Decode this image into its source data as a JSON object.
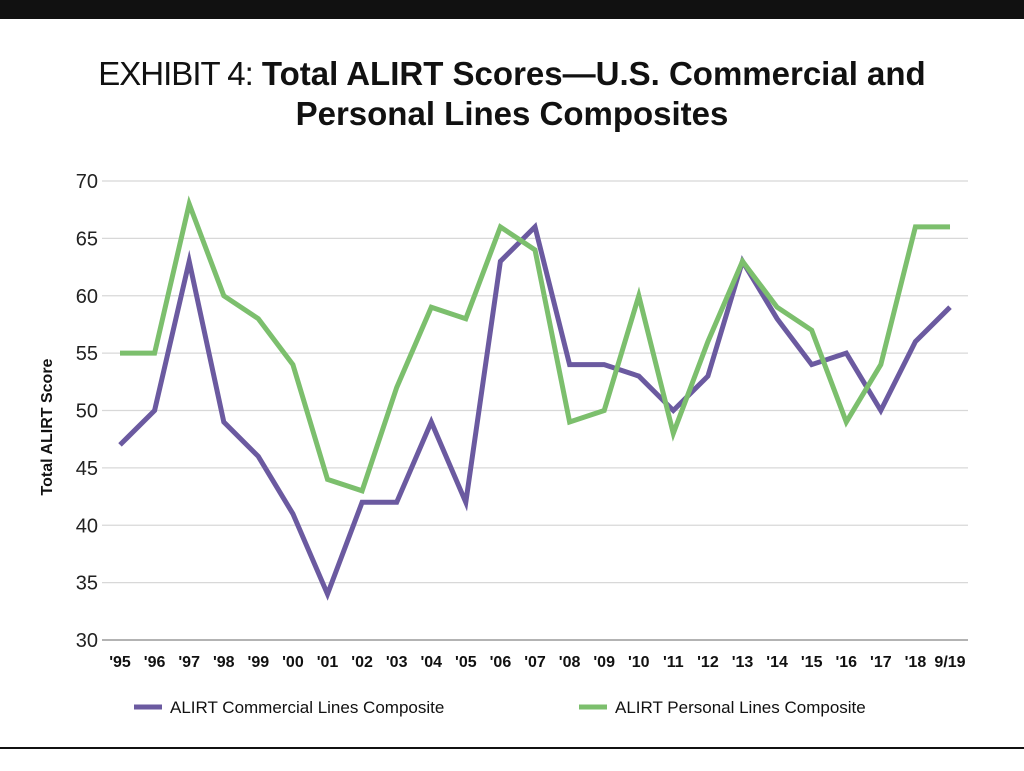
{
  "title": {
    "prefix": "EXHIBIT 4:",
    "line1": "Total ALIRT Scores—U.S. Commercial and",
    "line2": "Personal Lines Composites"
  },
  "chart_data": {
    "type": "line",
    "title": "Total ALIRT Scores—U.S. Commercial and Personal Lines Composites",
    "xlabel": "",
    "ylabel": "Total ALIRT Score",
    "ylim": [
      30,
      70
    ],
    "yticks": [
      30,
      35,
      40,
      45,
      50,
      55,
      60,
      65,
      70
    ],
    "grid": true,
    "legend_position": "bottom",
    "categories": [
      "'95",
      "'96",
      "'97",
      "'98",
      "'99",
      "'00",
      "'01",
      "'02",
      "'03",
      "'04",
      "'05",
      "'06",
      "'07",
      "'08",
      "'09",
      "'10",
      "'11",
      "'12",
      "'13",
      "'14",
      "'15",
      "'16",
      "'17",
      "'18",
      "9/19"
    ],
    "series": [
      {
        "name": "ALIRT Commercial Lines Composite",
        "color": "#6b5aa0",
        "values": [
          47,
          50,
          63,
          49,
          46,
          41,
          34,
          42,
          42,
          49,
          42,
          63,
          66,
          54,
          54,
          53,
          50,
          53,
          63,
          58,
          54,
          55,
          50,
          56,
          59
        ]
      },
      {
        "name": "ALIRT Personal Lines Composite",
        "color": "#7cbf6d",
        "values": [
          55,
          55,
          68,
          60,
          58,
          54,
          44,
          43,
          52,
          59,
          58,
          66,
          64,
          49,
          50,
          60,
          48,
          56,
          63,
          59,
          57,
          49,
          54,
          66,
          66
        ]
      }
    ]
  }
}
